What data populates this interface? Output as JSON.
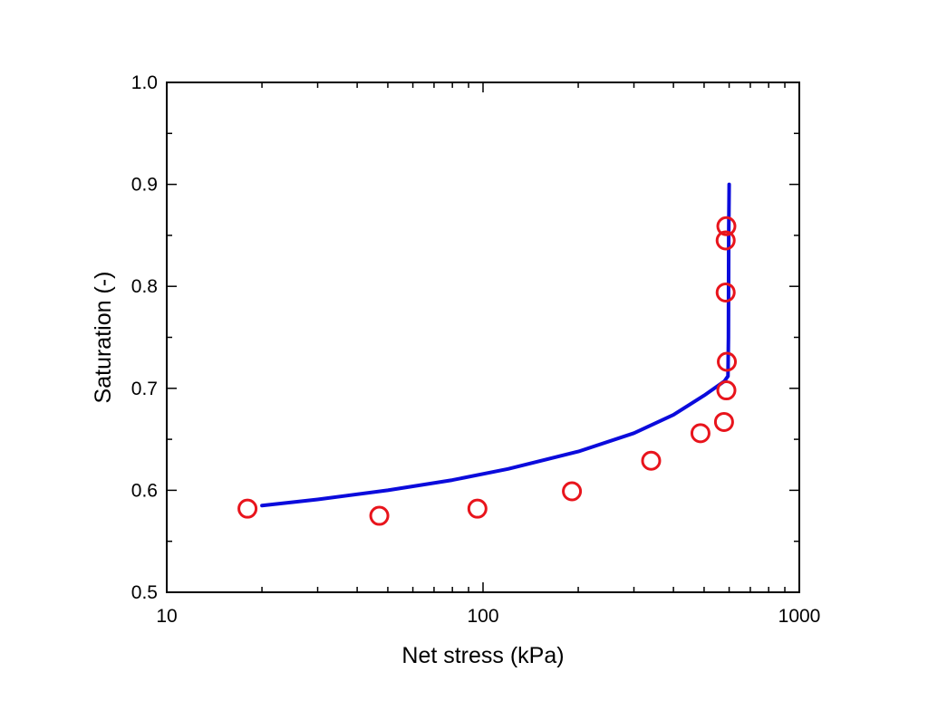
{
  "chart_data": {
    "type": "scatter",
    "title": "",
    "xlabel": "Net stress (kPa)",
    "ylabel": "Saturation (-)",
    "xscale": "log",
    "xlim": [
      10,
      1000
    ],
    "ylim": [
      0.5,
      1.0
    ],
    "xticks": [
      10,
      100,
      1000
    ],
    "xtick_labels": [
      "10",
      "100",
      "1000"
    ],
    "yticks": [
      0.5,
      0.6,
      0.7,
      0.8,
      0.9,
      1.0
    ],
    "ytick_labels": [
      "0.5",
      "0.6",
      "0.7",
      "0.8",
      "0.9",
      "1.0"
    ],
    "grid": false,
    "series": [
      {
        "kind": "scatter",
        "marker": "open-circle",
        "color": "#e8141c",
        "x": [
          18,
          47,
          96,
          191,
          340,
          487,
          578,
          588,
          590,
          585,
          585,
          588
        ],
        "y": [
          0.582,
          0.575,
          0.582,
          0.599,
          0.629,
          0.656,
          0.667,
          0.698,
          0.726,
          0.794,
          0.845,
          0.859
        ]
      },
      {
        "kind": "line",
        "color": "#0b0bdc",
        "x": [
          20,
          30,
          50,
          80,
          120,
          200,
          300,
          400,
          500,
          580,
          595,
          597,
          598,
          600
        ],
        "y": [
          0.585,
          0.591,
          0.6,
          0.61,
          0.621,
          0.638,
          0.656,
          0.674,
          0.693,
          0.707,
          0.712,
          0.75,
          0.85,
          0.9
        ]
      }
    ]
  }
}
